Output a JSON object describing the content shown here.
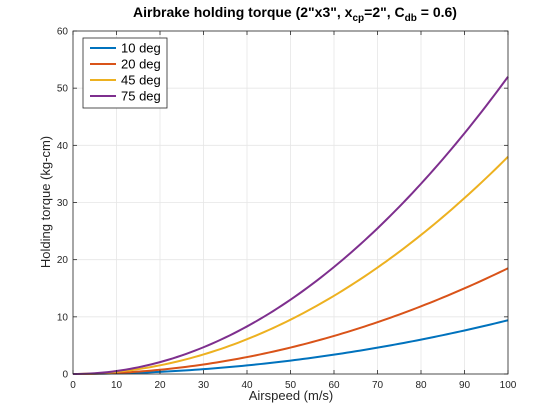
{
  "chart_data": {
    "type": "line",
    "title_parts": {
      "main": "Airbrake holding torque (2\"x3\", x",
      "sub1": "cp",
      "mid": "=2\", C",
      "sub2": "db",
      "end": " = 0.6)"
    },
    "xlabel": "Airspeed (m/s)",
    "ylabel": "Holding torque (kg-cm)",
    "xlim": [
      0,
      100
    ],
    "ylim": [
      0,
      60
    ],
    "xticks": [
      0,
      10,
      20,
      30,
      40,
      50,
      60,
      70,
      80,
      90,
      100
    ],
    "yticks": [
      0,
      10,
      20,
      30,
      40,
      50,
      60
    ],
    "grid": true,
    "legend_location": "top-left",
    "x": [
      0,
      10,
      20,
      30,
      40,
      50,
      60,
      70,
      80,
      90,
      100
    ],
    "series": [
      {
        "name": "10 deg",
        "color": "#0072BD",
        "values": [
          0,
          0.094,
          0.376,
          0.846,
          1.504,
          2.35,
          3.384,
          4.606,
          6.016,
          7.614,
          9.4
        ]
      },
      {
        "name": "20 deg",
        "color": "#D95319",
        "values": [
          0,
          0.185,
          0.74,
          1.665,
          2.96,
          4.625,
          6.66,
          9.065,
          11.84,
          14.985,
          18.5
        ]
      },
      {
        "name": "45 deg",
        "color": "#EDB120",
        "values": [
          0,
          0.38,
          1.52,
          3.42,
          6.08,
          9.5,
          13.68,
          18.62,
          24.32,
          30.78,
          38.0
        ]
      },
      {
        "name": "75 deg",
        "color": "#7E2F8E",
        "values": [
          0,
          0.52,
          2.08,
          4.68,
          8.32,
          13.0,
          18.72,
          25.48,
          33.28,
          42.12,
          52.0
        ]
      }
    ]
  }
}
